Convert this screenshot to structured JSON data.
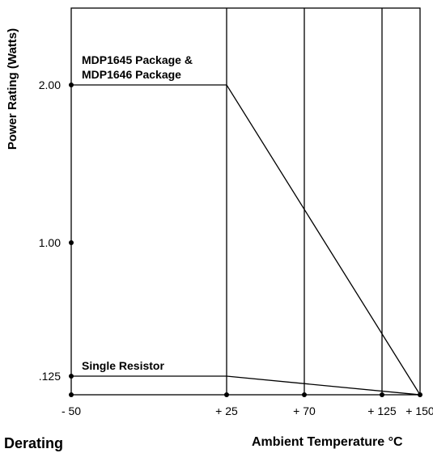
{
  "chart_data": {
    "type": "line",
    "title": "",
    "xlabel": "Ambient Temperature °C",
    "ylabel": "Power Rating (Watts)",
    "x_ticks": [
      {
        "value": -50,
        "label": "- 50"
      },
      {
        "value": 25,
        "label": "+ 25"
      },
      {
        "value": 70,
        "label": "+ 70"
      },
      {
        "value": 125,
        "label": "+ 125"
      },
      {
        "value": 150,
        "label": "+ 150"
      }
    ],
    "y_ticks": [
      {
        "value": 0.125,
        "label": ".125"
      },
      {
        "value": 1.0,
        "label": "1.00"
      },
      {
        "value": 2.0,
        "label": "2.00"
      }
    ],
    "xlim": [
      -50,
      150
    ],
    "ylim": [
      0,
      2.5
    ],
    "grid": "vertical",
    "series": [
      {
        "name": "MDP1645 Package & MDP1646 Package",
        "label_lines": [
          "MDP1645 Package &",
          "MDP1646 Package"
        ],
        "points": [
          [
            -50,
            2.0
          ],
          [
            25,
            2.0
          ],
          [
            150,
            0
          ]
        ]
      },
      {
        "name": "Single Resistor",
        "label_lines": [
          "Single Resistor"
        ],
        "points": [
          [
            -50,
            0.125
          ],
          [
            25,
            0.125
          ],
          [
            150,
            0
          ]
        ]
      }
    ]
  },
  "footer": {
    "left": "Derating",
    "right": "Ambient Temperature °C"
  }
}
